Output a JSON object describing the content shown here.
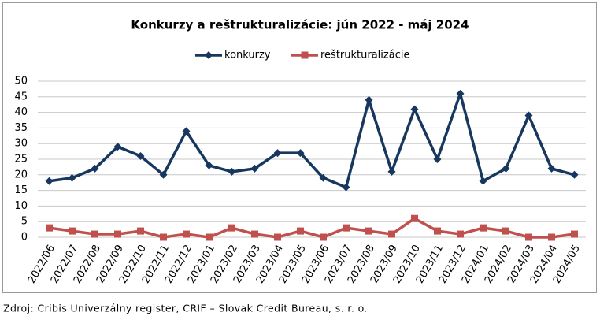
{
  "chart_data": {
    "type": "line",
    "title": "Konkurzy a reštrukturalizácie: jún 2022 - máj 2024",
    "source": "Zdroj: Cribis Univerzálny register, CRIF – Slovak Credit Bureau, s. r. o.",
    "categories": [
      "2022/06",
      "2022/07",
      "2022/08",
      "2022/09",
      "2022/10",
      "2022/11",
      "2022/12",
      "2023/01",
      "2023/02",
      "2023/03",
      "2023/04",
      "2023/05",
      "2023/06",
      "2023/07",
      "2023/08",
      "2023/09",
      "2023/10",
      "2023/11",
      "2023/12",
      "2024/01",
      "2024/02",
      "2024/03",
      "2024/04",
      "2024/05"
    ],
    "series": [
      {
        "name": "konkurzy",
        "color": "#17375e",
        "marker": "diamond",
        "values": [
          18,
          19,
          22,
          29,
          26,
          20,
          34,
          23,
          21,
          22,
          27,
          27,
          19,
          16,
          44,
          21,
          41,
          25,
          46,
          18,
          22,
          39,
          22,
          20
        ]
      },
      {
        "name": "reštrukturalizácie",
        "color": "#c0504d",
        "marker": "square",
        "values": [
          3,
          2,
          1,
          1,
          2,
          0,
          1,
          0,
          3,
          1,
          0,
          2,
          0,
          3,
          2,
          1,
          6,
          2,
          1,
          3,
          2,
          0,
          0,
          1
        ]
      }
    ],
    "ylim": [
      0,
      50
    ],
    "yticks": [
      0,
      5,
      10,
      15,
      20,
      25,
      30,
      35,
      40,
      45,
      50
    ],
    "grid": true,
    "legend": "top"
  }
}
